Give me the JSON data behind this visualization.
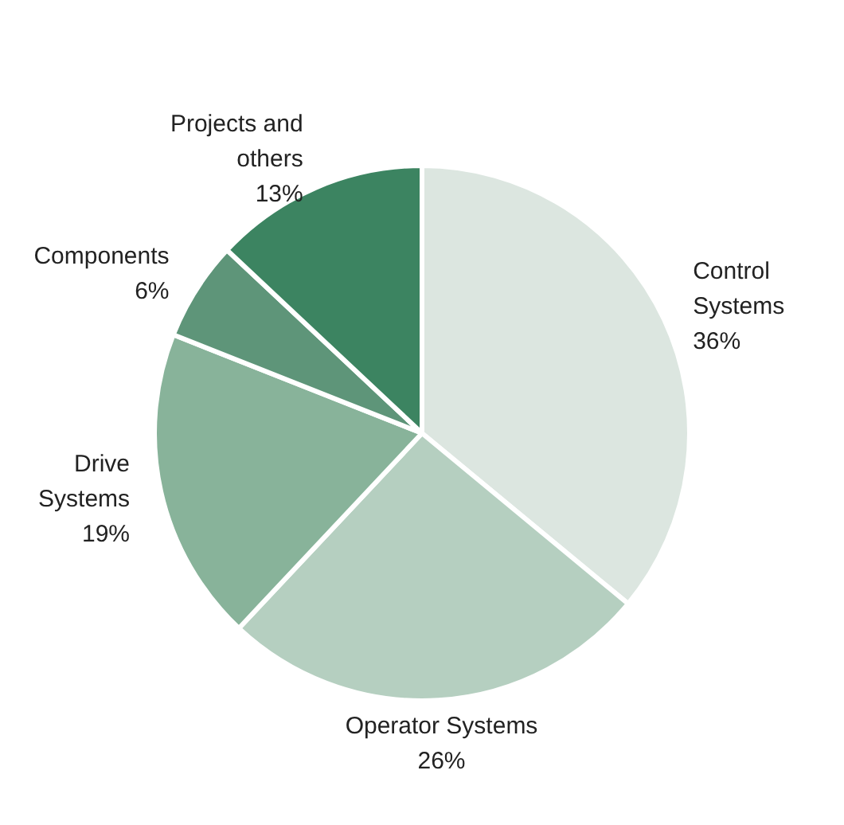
{
  "chart_data": {
    "type": "pie",
    "categories": [
      "Control Systems",
      "Operator Systems",
      "Drive Systems",
      "Components",
      "Projects and others"
    ],
    "values": [
      36,
      26,
      19,
      6,
      13
    ],
    "colors": [
      "#dce6e0",
      "#b5cfc0",
      "#88b39a",
      "#5e9579",
      "#3c8461"
    ],
    "value_labels": [
      "36%",
      "26%",
      "19%",
      "6%",
      "13%"
    ]
  }
}
